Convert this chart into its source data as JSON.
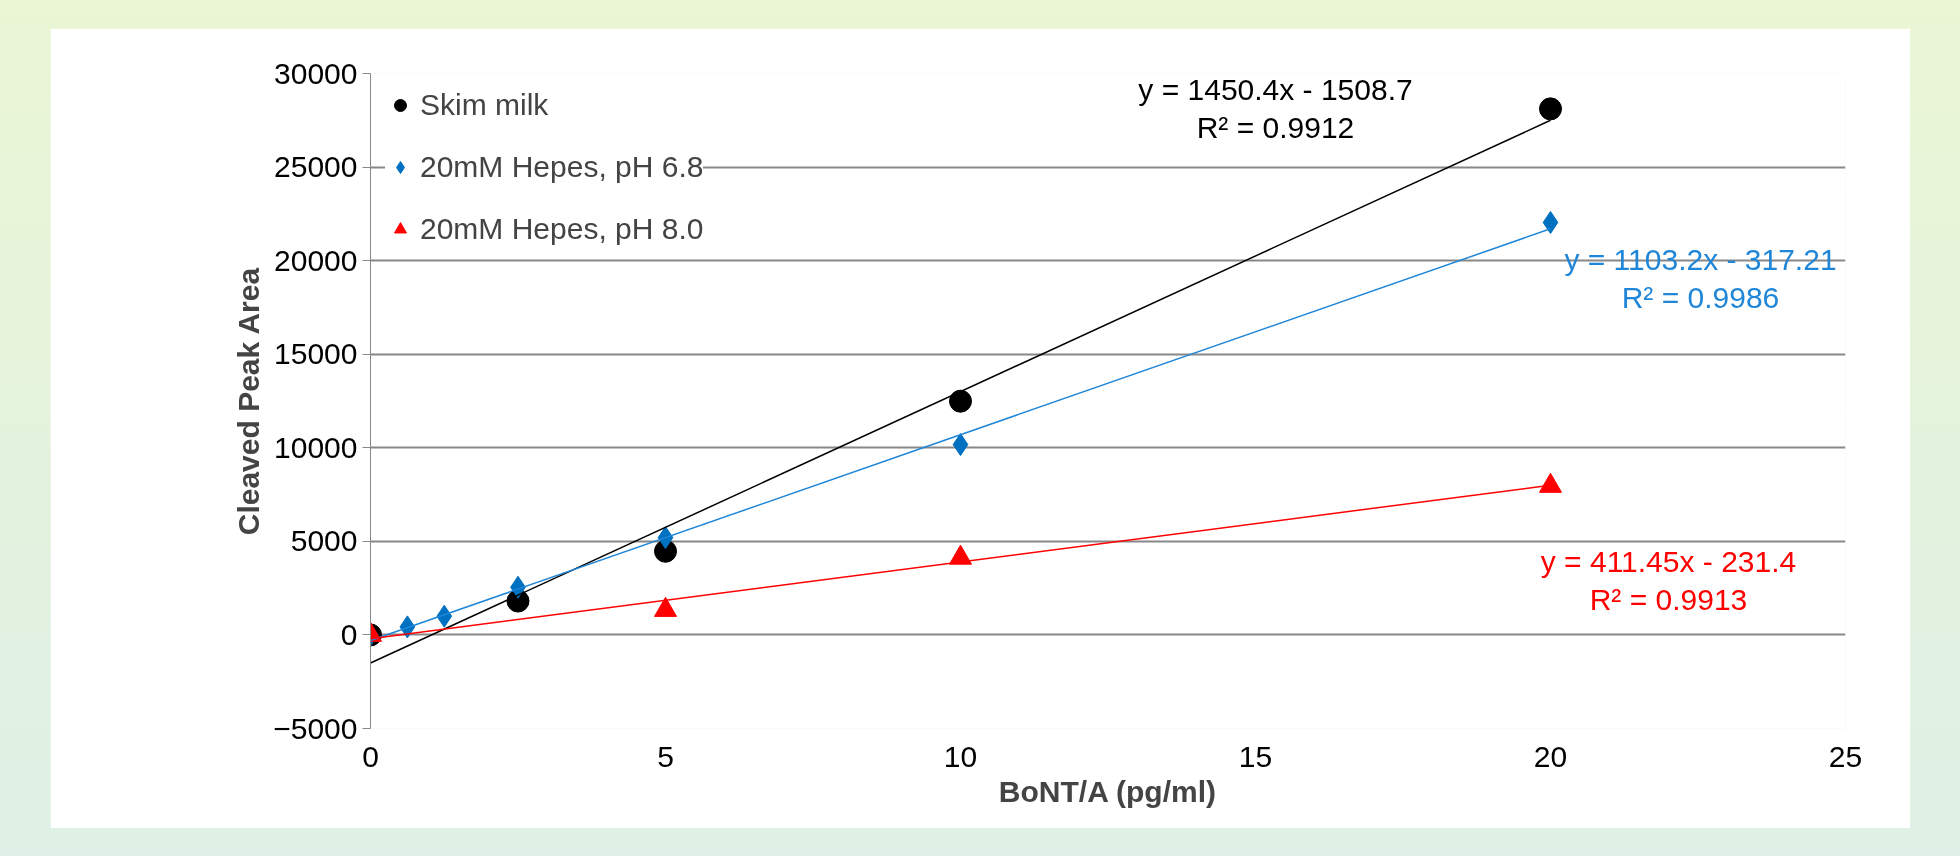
{
  "chart_data": {
    "type": "scatter",
    "xlabel": "BoNT/A (pg/ml)",
    "ylabel": "Cleaved Peak Area",
    "xlim": [
      0,
      25
    ],
    "xticks": [
      0,
      5,
      10,
      15,
      20,
      25
    ],
    "ylim": [
      -5000,
      30000
    ],
    "yticks": [
      -5000,
      0,
      5000,
      10000,
      15000,
      20000,
      25000,
      30000
    ],
    "grid": "y",
    "legend": "top left",
    "series": [
      {
        "name": "Skim milk",
        "marker": "circle",
        "color": "#000000",
        "x": [
          0,
          2.5,
          5,
          10,
          20
        ],
        "values": [
          0,
          1810,
          4470,
          12490,
          28110
        ]
      },
      {
        "name": "20mM Hepes, pH 6.8",
        "marker": "diamond",
        "color": "#0070c0",
        "x": [
          0,
          0.625,
          1.25,
          2.5,
          5,
          10,
          20
        ],
        "values": [
          0,
          430,
          1000,
          2550,
          5200,
          10170,
          22040
        ]
      },
      {
        "name": "20mM Hepes, pH 8.0",
        "marker": "triangle",
        "color": "#ff0000",
        "x": [
          0,
          5,
          10,
          20
        ],
        "values": [
          0,
          1330,
          4120,
          7960
        ]
      },
      {
        "type": "line",
        "color": "#000000",
        "x": [
          0,
          20
        ],
        "values": [
          -1500,
          27500
        ]
      },
      {
        "type": "line",
        "color": "#1f86d8",
        "x": [
          0,
          20
        ],
        "values": [
          -300,
          21700
        ]
      },
      {
        "type": "line",
        "color": "#ff0000",
        "x": [
          0,
          20
        ],
        "values": [
          -200,
          8000
        ]
      }
    ],
    "annotations": [
      "y = 1450.4x - 1508.7\nR² = 0.9912",
      "y = 1103.2x - 317.21\nR² = 0.9986",
      "y = 411.45x - 231.4\nR² = 0.9913"
    ]
  }
}
